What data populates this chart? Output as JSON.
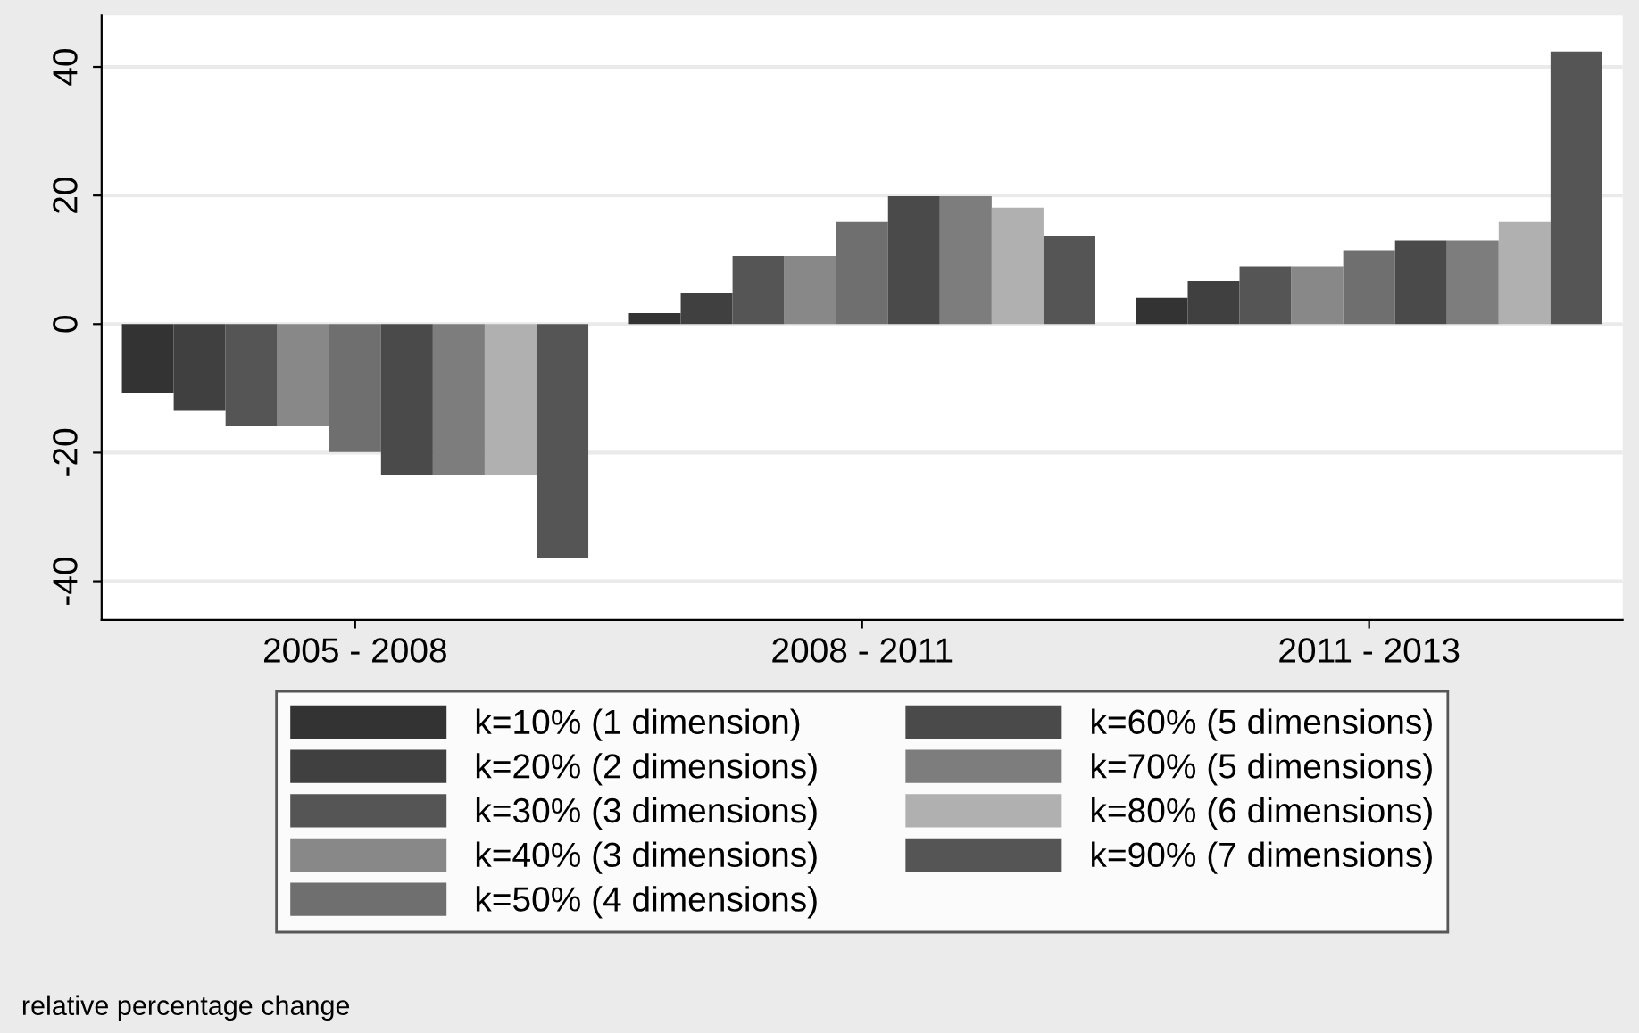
{
  "chart_data": {
    "type": "bar",
    "categories": [
      "2005 - 2008",
      "2008 - 2011",
      "2011 - 2013"
    ],
    "series": [
      {
        "name": "k=10% (1 dimension)",
        "color": "#333333",
        "values": [
          -10.7,
          1.7,
          4.1
        ]
      },
      {
        "name": "k=20% (2 dimensions)",
        "color": "#404040",
        "values": [
          -13.5,
          4.9,
          6.7
        ]
      },
      {
        "name": "k=30% (3 dimensions)",
        "color": "#555555",
        "values": [
          -15.9,
          10.6,
          9.0
        ]
      },
      {
        "name": "k=40% (3 dimensions)",
        "color": "#888888",
        "values": [
          -15.9,
          10.6,
          9.0
        ]
      },
      {
        "name": "k=50% (4 dimensions)",
        "color": "#6f6f6f",
        "values": [
          -19.9,
          15.9,
          11.5
        ]
      },
      {
        "name": "k=60% (5 dimensions)",
        "color": "#4a4a4a",
        "values": [
          -23.4,
          19.9,
          13.0
        ]
      },
      {
        "name": "k=70% (5 dimensions)",
        "color": "#7d7d7d",
        "values": [
          -23.4,
          19.9,
          13.0
        ]
      },
      {
        "name": "k=80% (6 dimensions)",
        "color": "#b0b0b0",
        "values": [
          -23.4,
          18.1,
          15.9
        ]
      },
      {
        "name": "k=90% (7 dimensions)",
        "color": "#555555",
        "values": [
          -36.3,
          13.7,
          42.4
        ]
      }
    ],
    "ylim": [
      -46,
      48
    ],
    "yticks": [
      -40,
      -20,
      0,
      20,
      40
    ],
    "grid": "y",
    "legend": "bottom",
    "annotations": [
      "relative percentage change"
    ]
  }
}
